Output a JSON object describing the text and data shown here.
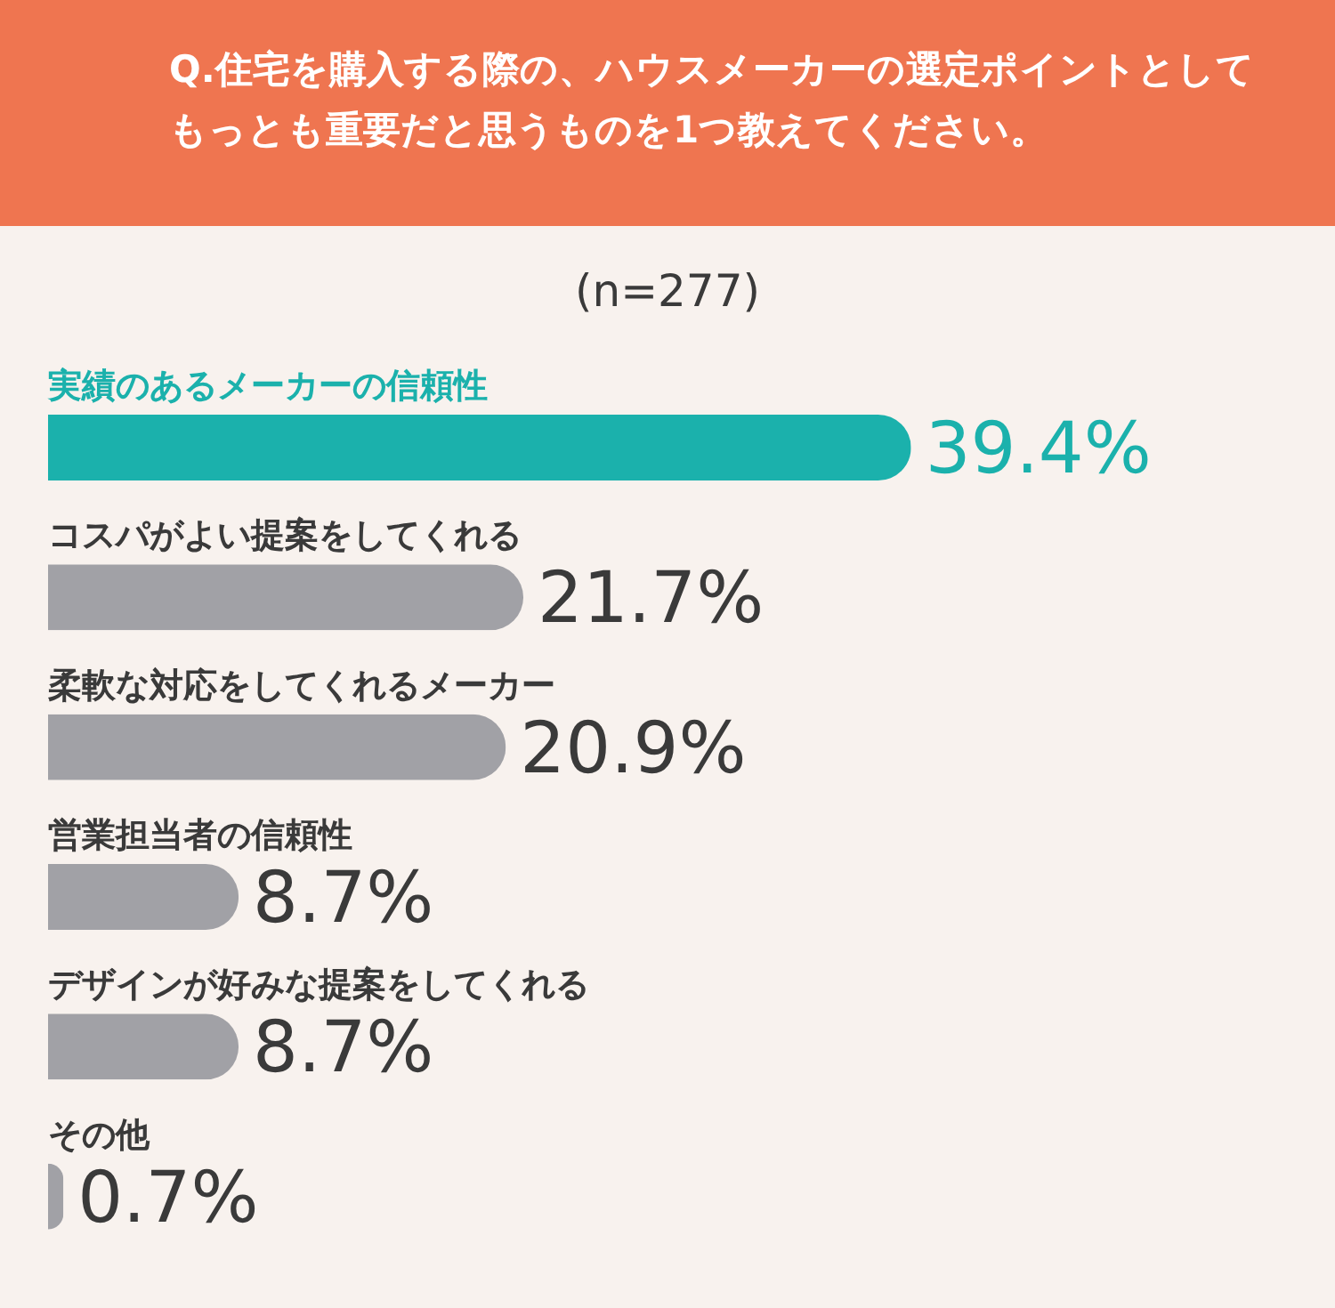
{
  "chart_data": {
    "type": "bar",
    "orientation": "horizontal",
    "title": "Q.住宅を購入する際の、ハウスメーカーの選定ポイントとしてもっとも重要だと思うものを1つ教えてください。",
    "subtitle": "(n=277)",
    "categories": [
      "実績のあるメーカーの信頼性",
      "コスパがよい提案をしてくれる",
      "柔軟な対応をしてくれるメーカー",
      "営業担当者の信頼性",
      "デザインが好みな提案をしてくれる",
      "その他"
    ],
    "values": [
      39.4,
      21.7,
      20.9,
      8.7,
      8.7,
      0.7
    ],
    "colors": [
      "#1bb1ac",
      "#a1a1a6",
      "#a1a1a6",
      "#a1a1a6",
      "#a1a1a6",
      "#a1a1a6"
    ],
    "value_labels": [
      "39.4%",
      "21.7%",
      "20.9%",
      "8.7%",
      "8.7%",
      "0.7%"
    ]
  }
}
